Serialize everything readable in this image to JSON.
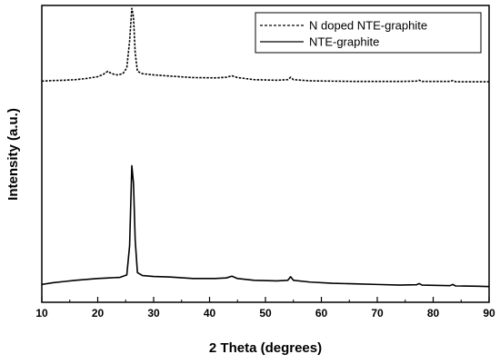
{
  "chart_data": {
    "type": "line",
    "xlabel": "2 Theta (degrees)",
    "ylabel": "Intensity (a.u.)",
    "xlim": [
      10,
      90
    ],
    "xticks": [
      "10",
      "20",
      "30",
      "40",
      "50",
      "60",
      "70",
      "80",
      "90"
    ],
    "yticks_labeled": false,
    "grid": false,
    "legend_position": "top-right",
    "series": [
      {
        "name": "N doped NTE-graphite",
        "line_style": "dashed",
        "color": "#000000",
        "points": [
          [
            10,
            0.745
          ],
          [
            12,
            0.747
          ],
          [
            14,
            0.748
          ],
          [
            16,
            0.75
          ],
          [
            18,
            0.754
          ],
          [
            20,
            0.76
          ],
          [
            21,
            0.768
          ],
          [
            21.8,
            0.778
          ],
          [
            22.5,
            0.77
          ],
          [
            23.5,
            0.766
          ],
          [
            24.5,
            0.77
          ],
          [
            25.2,
            0.79
          ],
          [
            25.7,
            0.88
          ],
          [
            26.1,
            0.99
          ],
          [
            26.4,
            0.96
          ],
          [
            26.7,
            0.84
          ],
          [
            27.1,
            0.778
          ],
          [
            28,
            0.77
          ],
          [
            30,
            0.766
          ],
          [
            33,
            0.762
          ],
          [
            37,
            0.757
          ],
          [
            41,
            0.756
          ],
          [
            43,
            0.758
          ],
          [
            44,
            0.763
          ],
          [
            45,
            0.757
          ],
          [
            48,
            0.75
          ],
          [
            52,
            0.748
          ],
          [
            54,
            0.75
          ],
          [
            54.5,
            0.758
          ],
          [
            55,
            0.75
          ],
          [
            58,
            0.746
          ],
          [
            62,
            0.745
          ],
          [
            66,
            0.744
          ],
          [
            70,
            0.744
          ],
          [
            74,
            0.744
          ],
          [
            77,
            0.745
          ],
          [
            77.5,
            0.748
          ],
          [
            78,
            0.744
          ],
          [
            83,
            0.744
          ],
          [
            83.5,
            0.747
          ],
          [
            84,
            0.743
          ],
          [
            88,
            0.743
          ],
          [
            90,
            0.743
          ]
        ]
      },
      {
        "name": "NTE-graphite",
        "line_style": "solid",
        "color": "#000000",
        "points": [
          [
            10,
            0.06
          ],
          [
            12,
            0.066
          ],
          [
            14,
            0.07
          ],
          [
            16,
            0.074
          ],
          [
            18,
            0.077
          ],
          [
            20,
            0.08
          ],
          [
            22,
            0.082
          ],
          [
            24,
            0.084
          ],
          [
            25.2,
            0.092
          ],
          [
            25.7,
            0.19
          ],
          [
            26.1,
            0.46
          ],
          [
            26.4,
            0.4
          ],
          [
            26.7,
            0.21
          ],
          [
            27.1,
            0.1
          ],
          [
            28,
            0.09
          ],
          [
            30,
            0.087
          ],
          [
            33,
            0.085
          ],
          [
            37,
            0.08
          ],
          [
            41,
            0.08
          ],
          [
            43,
            0.082
          ],
          [
            44,
            0.088
          ],
          [
            45,
            0.08
          ],
          [
            48,
            0.074
          ],
          [
            52,
            0.072
          ],
          [
            54,
            0.074
          ],
          [
            54.5,
            0.086
          ],
          [
            55,
            0.074
          ],
          [
            58,
            0.068
          ],
          [
            62,
            0.064
          ],
          [
            66,
            0.062
          ],
          [
            70,
            0.06
          ],
          [
            74,
            0.058
          ],
          [
            77,
            0.059
          ],
          [
            77.5,
            0.063
          ],
          [
            78,
            0.058
          ],
          [
            83,
            0.056
          ],
          [
            83.5,
            0.06
          ],
          [
            84,
            0.055
          ],
          [
            88,
            0.054
          ],
          [
            90,
            0.053
          ]
        ]
      }
    ]
  }
}
